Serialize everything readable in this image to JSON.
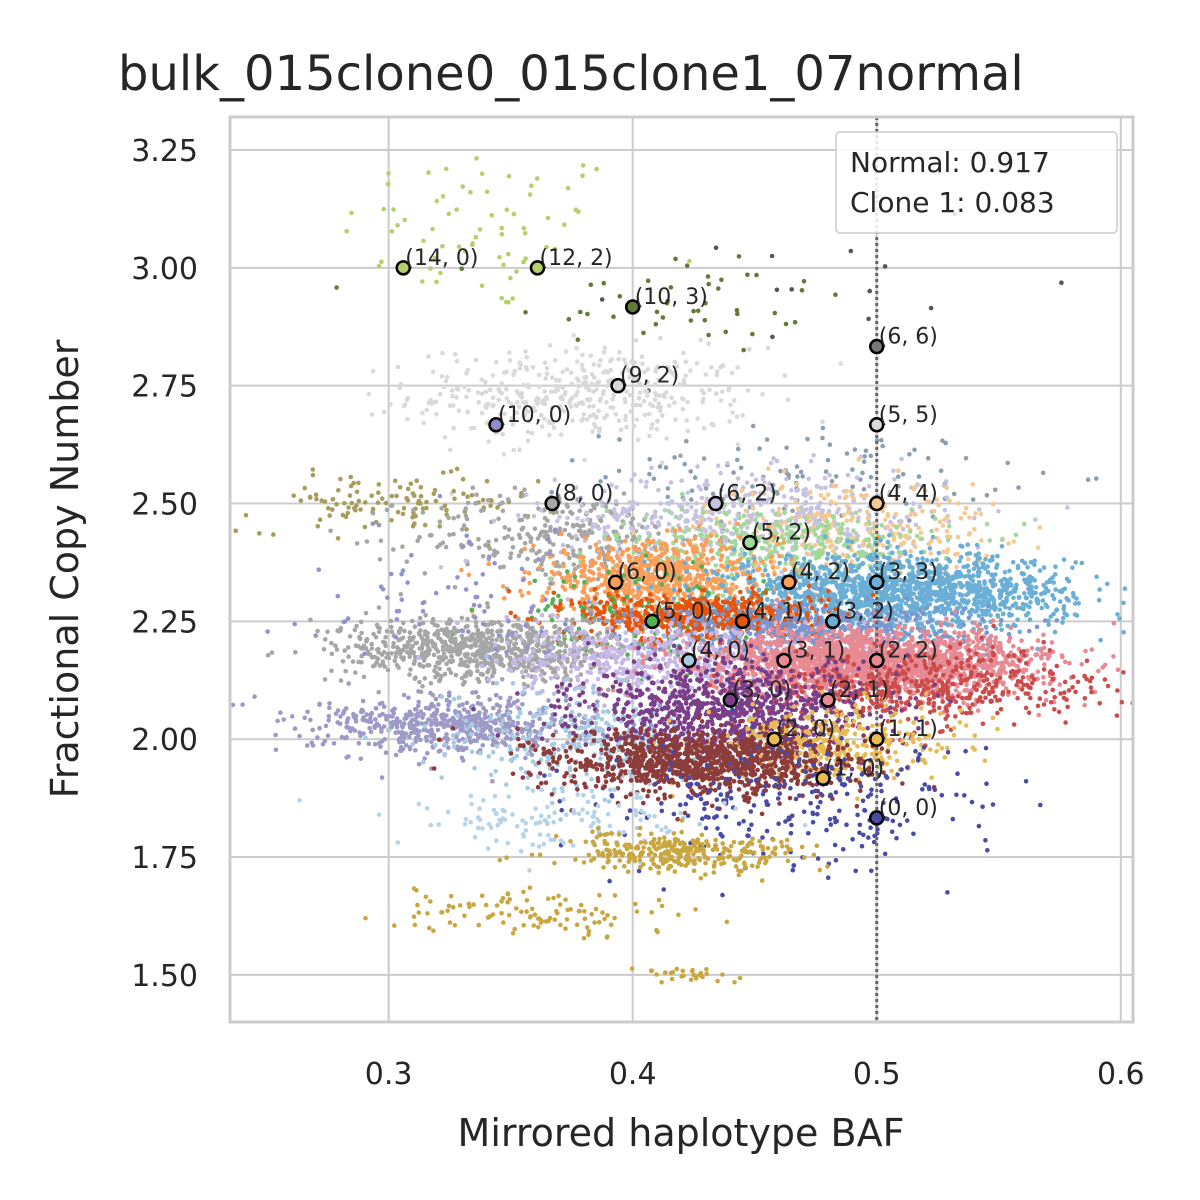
{
  "chart_data": {
    "type": "scatter",
    "title": "bulk_015clone0_015clone1_07normal",
    "xlabel": "Mirrored haplotype BAF",
    "ylabel": "Fractional Copy Number",
    "xlim": [
      0.235,
      0.605
    ],
    "ylim": [
      1.4,
      3.32
    ],
    "xticks": [
      0.3,
      0.4,
      0.5,
      0.6
    ],
    "xtick_labels": [
      "0.3",
      "0.4",
      "0.5",
      "0.6"
    ],
    "yticks": [
      1.5,
      1.75,
      2.0,
      2.25,
      2.5,
      2.75,
      3.0,
      3.25
    ],
    "ytick_labels": [
      "1.50",
      "1.75",
      "2.00",
      "2.25",
      "2.50",
      "2.75",
      "3.00",
      "3.25"
    ],
    "grid": true,
    "vline_x": 0.5,
    "legend": {
      "position": "top-right",
      "lines": [
        "Normal: 0.917",
        "Clone 1: 0.083"
      ]
    },
    "clusters": [
      {
        "cx": 0.34,
        "cy": 3.08,
        "sx": 0.03,
        "sy": 0.09,
        "n": 70,
        "color": "#b5cf6b"
      },
      {
        "cx": 0.42,
        "cy": 2.93,
        "sx": 0.035,
        "sy": 0.06,
        "n": 45,
        "color": "#637939"
      },
      {
        "cx": 0.46,
        "cy": 2.95,
        "sx": 0.05,
        "sy": 0.12,
        "n": 14,
        "color": "#555555"
      },
      {
        "cx": 0.38,
        "cy": 2.73,
        "sx": 0.035,
        "sy": 0.05,
        "n": 420,
        "color": "#d9d9d9"
      },
      {
        "cx": 0.47,
        "cy": 2.56,
        "sx": 0.04,
        "sy": 0.05,
        "n": 120,
        "color": "#8c9fb0"
      },
      {
        "cx": 0.3,
        "cy": 2.5,
        "sx": 0.03,
        "sy": 0.03,
        "n": 120,
        "color": "#a89c5a"
      },
      {
        "cx": 0.37,
        "cy": 2.43,
        "sx": 0.03,
        "sy": 0.05,
        "n": 300,
        "color": "#a6a6a6"
      },
      {
        "cx": 0.45,
        "cy": 2.47,
        "sx": 0.04,
        "sy": 0.05,
        "n": 500,
        "color": "#c7c2e0"
      },
      {
        "cx": 0.49,
        "cy": 2.45,
        "sx": 0.03,
        "sy": 0.05,
        "n": 260,
        "color": "#f5c98f"
      },
      {
        "cx": 0.46,
        "cy": 2.41,
        "sx": 0.035,
        "sy": 0.04,
        "n": 360,
        "color": "#a1d99b"
      },
      {
        "cx": 0.41,
        "cy": 2.34,
        "sx": 0.025,
        "sy": 0.04,
        "n": 700,
        "color": "#fd9e58"
      },
      {
        "cx": 0.51,
        "cy": 2.31,
        "sx": 0.035,
        "sy": 0.04,
        "n": 1500,
        "color": "#6baed6"
      },
      {
        "cx": 0.4,
        "cy": 2.26,
        "sx": 0.025,
        "sy": 0.05,
        "n": 140,
        "color": "#52b152"
      },
      {
        "cx": 0.43,
        "cy": 2.26,
        "sx": 0.025,
        "sy": 0.025,
        "n": 600,
        "color": "#e6550d"
      },
      {
        "cx": 0.47,
        "cy": 2.23,
        "sx": 0.035,
        "sy": 0.03,
        "n": 500,
        "color": "#7b95d1"
      },
      {
        "cx": 0.34,
        "cy": 2.19,
        "sx": 0.03,
        "sy": 0.035,
        "n": 800,
        "color": "#a6a6a6"
      },
      {
        "cx": 0.33,
        "cy": 2.3,
        "sx": 0.03,
        "sy": 0.08,
        "n": 80,
        "color": "#9292cf"
      },
      {
        "cx": 0.41,
        "cy": 2.17,
        "sx": 0.03,
        "sy": 0.04,
        "n": 500,
        "color": "#c6b8e8"
      },
      {
        "cx": 0.5,
        "cy": 2.16,
        "sx": 0.035,
        "sy": 0.035,
        "n": 1800,
        "color": "#e78a93"
      },
      {
        "cx": 0.52,
        "cy": 2.11,
        "sx": 0.035,
        "sy": 0.04,
        "n": 500,
        "color": "#cc4c4c"
      },
      {
        "cx": 0.33,
        "cy": 2.03,
        "sx": 0.03,
        "sy": 0.03,
        "n": 600,
        "color": "#9e9ac8"
      },
      {
        "cx": 0.38,
        "cy": 2.0,
        "sx": 0.03,
        "sy": 0.06,
        "n": 300,
        "color": "#a6cbe3"
      },
      {
        "cx": 0.44,
        "cy": 2.06,
        "sx": 0.03,
        "sy": 0.05,
        "n": 900,
        "color": "#7b3f8a"
      },
      {
        "cx": 0.48,
        "cy": 1.99,
        "sx": 0.025,
        "sy": 0.04,
        "n": 350,
        "color": "#e7ba52"
      },
      {
        "cx": 0.43,
        "cy": 1.95,
        "sx": 0.03,
        "sy": 0.035,
        "n": 1100,
        "color": "#8c3c3a"
      },
      {
        "cx": 0.47,
        "cy": 1.86,
        "sx": 0.04,
        "sy": 0.07,
        "n": 260,
        "color": "#4a4aa8"
      },
      {
        "cx": 0.37,
        "cy": 1.83,
        "sx": 0.03,
        "sy": 0.04,
        "n": 130,
        "color": "#b6d3ea"
      },
      {
        "cx": 0.42,
        "cy": 1.76,
        "sx": 0.025,
        "sy": 0.02,
        "n": 320,
        "color": "#c9a640"
      },
      {
        "cx": 0.36,
        "cy": 1.63,
        "sx": 0.03,
        "sy": 0.025,
        "n": 110,
        "color": "#c9a640"
      },
      {
        "cx": 0.42,
        "cy": 1.5,
        "sx": 0.01,
        "sy": 0.008,
        "n": 30,
        "color": "#c9a640"
      }
    ],
    "states": [
      {
        "label": "(14, 0)",
        "x": 0.306,
        "y": 3.0,
        "color": "#b5cf6b"
      },
      {
        "label": "(12, 2)",
        "x": 0.361,
        "y": 3.0,
        "color": "#b5cf6b"
      },
      {
        "label": "(10, 3)",
        "x": 0.4,
        "y": 2.917,
        "color": "#637939"
      },
      {
        "label": "(6, 6)",
        "x": 0.5,
        "y": 2.833,
        "color": "#777777"
      },
      {
        "label": "(9, 2)",
        "x": 0.394,
        "y": 2.75,
        "color": "#d9d9d9"
      },
      {
        "label": "(10, 0)",
        "x": 0.344,
        "y": 2.667,
        "color": "#8c8fc8"
      },
      {
        "label": "(5, 5)",
        "x": 0.5,
        "y": 2.667,
        "color": "#d9d9d9"
      },
      {
        "label": "(8, 0)",
        "x": 0.367,
        "y": 2.5,
        "color": "#a6a6a6"
      },
      {
        "label": "(6, 2)",
        "x": 0.434,
        "y": 2.5,
        "color": "#c7c2e0"
      },
      {
        "label": "(4, 4)",
        "x": 0.5,
        "y": 2.5,
        "color": "#f5c98f"
      },
      {
        "label": "(5, 2)",
        "x": 0.448,
        "y": 2.417,
        "color": "#a1d99b"
      },
      {
        "label": "(6, 0)",
        "x": 0.393,
        "y": 2.333,
        "color": "#fd9e58"
      },
      {
        "label": "(4, 2)",
        "x": 0.464,
        "y": 2.333,
        "color": "#fd9e58"
      },
      {
        "label": "(3, 3)",
        "x": 0.5,
        "y": 2.333,
        "color": "#6baed6"
      },
      {
        "label": "(5, 0)",
        "x": 0.408,
        "y": 2.25,
        "color": "#52b152"
      },
      {
        "label": "(4, 1)",
        "x": 0.445,
        "y": 2.25,
        "color": "#e6550d"
      },
      {
        "label": "(3, 2)",
        "x": 0.482,
        "y": 2.25,
        "color": "#6baed6"
      },
      {
        "label": "(4, 0)",
        "x": 0.423,
        "y": 2.167,
        "color": "#a6cbe3"
      },
      {
        "label": "(3, 1)",
        "x": 0.462,
        "y": 2.167,
        "color": "#e78a93"
      },
      {
        "label": "(2, 2)",
        "x": 0.5,
        "y": 2.167,
        "color": "#e78a93"
      },
      {
        "label": "(3, 0)",
        "x": 0.44,
        "y": 2.083,
        "color": "#7b3f8a"
      },
      {
        "label": "(2, 1)",
        "x": 0.48,
        "y": 2.083,
        "color": "#e78a93"
      },
      {
        "label": "(2, 0)",
        "x": 0.458,
        "y": 2.0,
        "color": "#e7ba52"
      },
      {
        "label": "(1, 1)",
        "x": 0.5,
        "y": 2.0,
        "color": "#e7ba52"
      },
      {
        "label": "(1, 0)",
        "x": 0.478,
        "y": 1.917,
        "color": "#e7ba52"
      },
      {
        "label": "(0, 0)",
        "x": 0.5,
        "y": 1.833,
        "color": "#4a4aa8"
      }
    ]
  }
}
